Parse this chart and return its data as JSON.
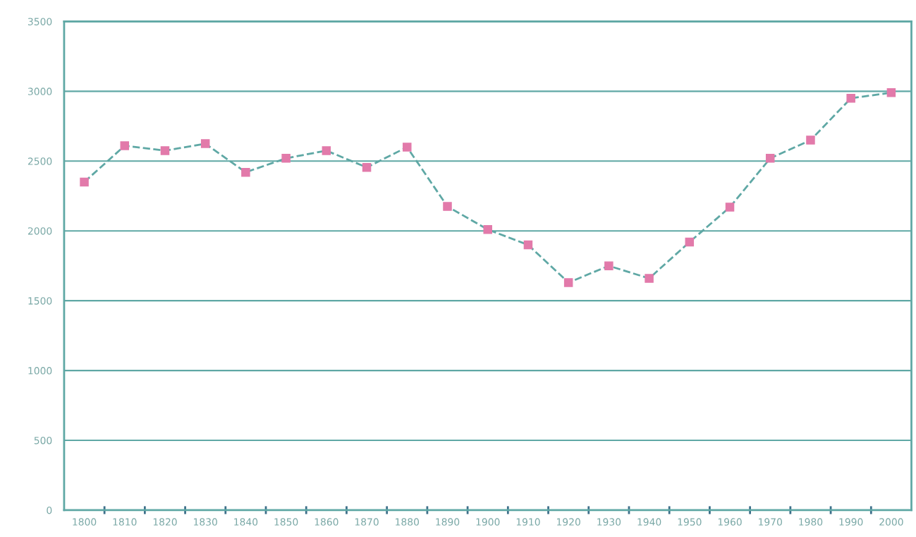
{
  "chart_data": {
    "type": "line",
    "categories": [
      "1800",
      "1810",
      "1820",
      "1830",
      "1840",
      "1850",
      "1860",
      "1870",
      "1880",
      "1890",
      "1900",
      "1910",
      "1920",
      "1930",
      "1940",
      "1950",
      "1960",
      "1970",
      "1980",
      "1990",
      "2000"
    ],
    "series": [
      {
        "color": "#e27aaa",
        "values": [
          2350,
          2610,
          2575,
          2625,
          2420,
          2520,
          2575,
          2455,
          2600,
          2175,
          2010,
          1900,
          1630,
          1750,
          1660,
          1920,
          2170,
          2520,
          2650,
          2950,
          2990
        ]
      }
    ],
    "ylim": [
      0,
      3500
    ],
    "yticks": [
      0,
      500,
      1000,
      1500,
      2000,
      2500,
      3000,
      3500
    ],
    "grid": "y",
    "marker": "square",
    "line_style": "dashed",
    "legend": false
  }
}
